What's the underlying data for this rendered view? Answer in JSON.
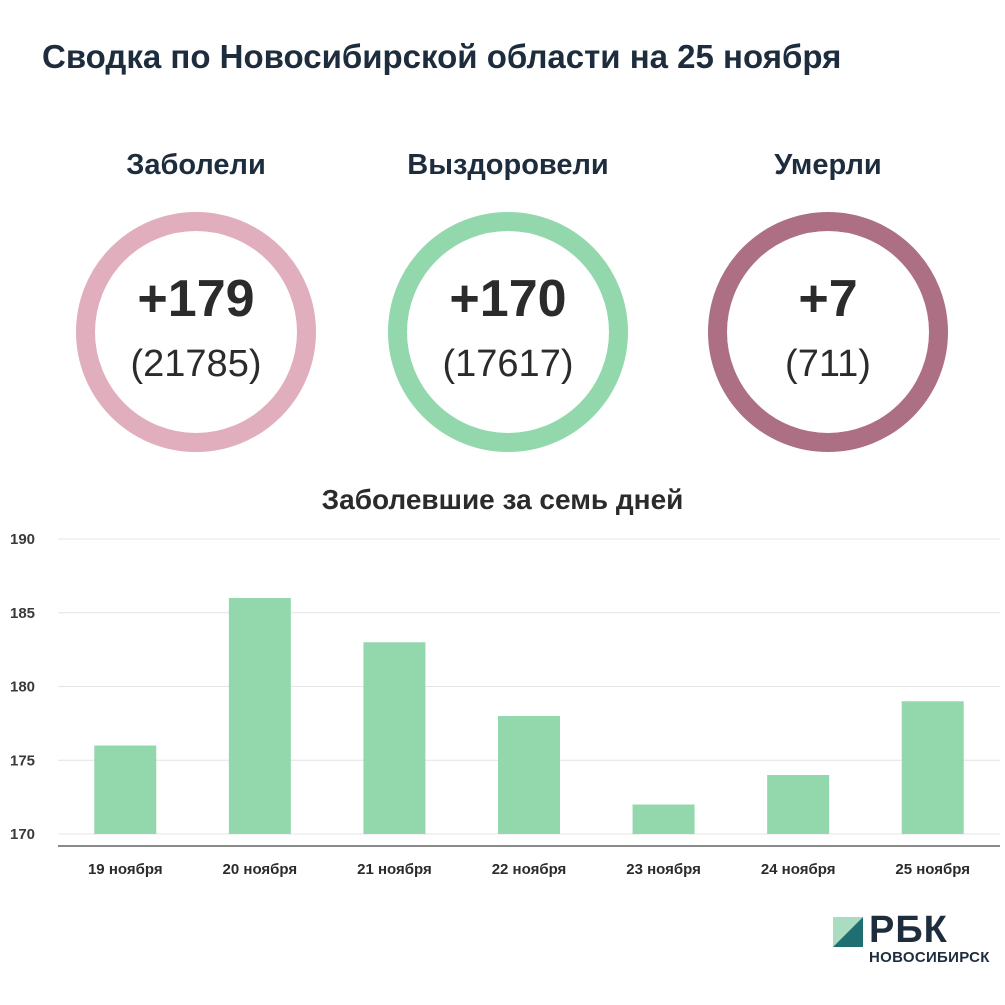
{
  "title": "Сводка по Новосибирской области на 25 ноября",
  "stats": [
    {
      "label": "Заболели",
      "delta": "+179",
      "total": "(21785)",
      "color": "#e0aebd"
    },
    {
      "label": "Выздоровели",
      "delta": "+170",
      "total": "(17617)",
      "color": "#93d8ad"
    },
    {
      "label": "Умерли",
      "delta": "+7",
      "total": "(711)",
      "color": "#ad6f84"
    }
  ],
  "chart_data": {
    "type": "bar",
    "title": "Заболевшие за семь дней",
    "categories": [
      "19 ноября",
      "20 ноября",
      "21 ноября",
      "22 ноября",
      "23 ноября",
      "24 ноября",
      "25 ноября"
    ],
    "values": [
      176,
      186,
      183,
      178,
      172,
      174,
      179
    ],
    "ylim": [
      170,
      190
    ],
    "yticks": [
      170,
      175,
      180,
      185,
      190
    ],
    "xlabel": "",
    "ylabel": "",
    "grid": true,
    "bar_color": "#93d8ad"
  },
  "logo": {
    "word": "РБК",
    "region": "НОВОСИБИРСК",
    "mark_colors": [
      "#a9dcc0",
      "#1f6f72"
    ]
  }
}
